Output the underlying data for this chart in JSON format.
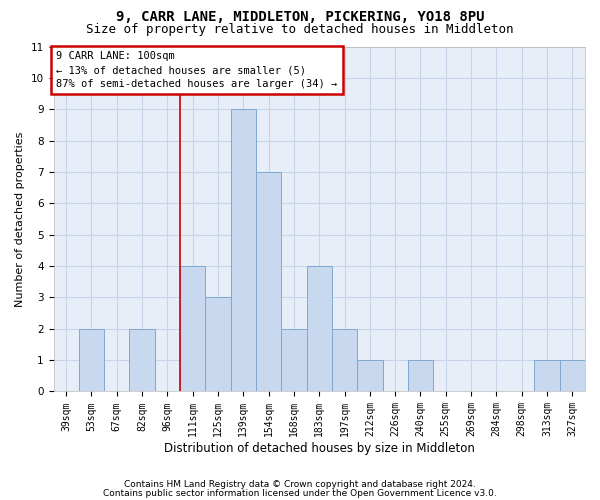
{
  "title1": "9, CARR LANE, MIDDLETON, PICKERING, YO18 8PU",
  "title2": "Size of property relative to detached houses in Middleton",
  "xlabel": "Distribution of detached houses by size in Middleton",
  "ylabel": "Number of detached properties",
  "categories": [
    "39sqm",
    "53sqm",
    "67sqm",
    "82sqm",
    "96sqm",
    "111sqm",
    "125sqm",
    "139sqm",
    "154sqm",
    "168sqm",
    "183sqm",
    "197sqm",
    "212sqm",
    "226sqm",
    "240sqm",
    "255sqm",
    "269sqm",
    "284sqm",
    "298sqm",
    "313sqm",
    "327sqm"
  ],
  "values": [
    0,
    2,
    0,
    2,
    0,
    4,
    3,
    9,
    7,
    2,
    4,
    2,
    1,
    0,
    1,
    0,
    0,
    0,
    0,
    1,
    1
  ],
  "bar_color": "#c8d8ee",
  "bar_edge_color": "#7fa8d0",
  "grid_color": "#c8d4e8",
  "annotation_text": "9 CARR LANE: 100sqm\n← 13% of detached houses are smaller (5)\n87% of semi-detached houses are larger (34) →",
  "annotation_box_color": "#ffffff",
  "annotation_box_edge_color": "#cc0000",
  "vline_color": "#cc0000",
  "vline_x": 4.5,
  "ylim": [
    0,
    11
  ],
  "yticks": [
    0,
    1,
    2,
    3,
    4,
    5,
    6,
    7,
    8,
    9,
    10,
    11
  ],
  "footer1": "Contains HM Land Registry data © Crown copyright and database right 2024.",
  "footer2": "Contains public sector information licensed under the Open Government Licence v3.0.",
  "bg_color": "#ffffff",
  "plot_bg_color": "#e8eef8",
  "title1_fontsize": 10,
  "title2_fontsize": 9,
  "ylabel_fontsize": 8,
  "xlabel_fontsize": 8.5,
  "tick_fontsize": 7,
  "annotation_fontsize": 7.5,
  "footer_fontsize": 6.5
}
